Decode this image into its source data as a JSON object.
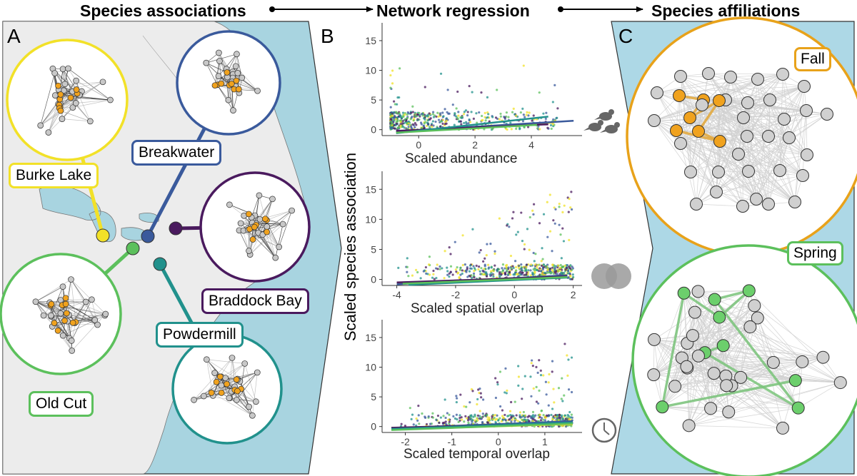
{
  "headers": {
    "associations": "Species associations",
    "regression": "Network regression",
    "affiliations": "Species affiliations"
  },
  "panel_labels": {
    "a": "A",
    "b": "B",
    "c": "C"
  },
  "sites": [
    {
      "name": "Burke Lake",
      "color": "#f2e128"
    },
    {
      "name": "Breakwater",
      "color": "#3a5a9c"
    },
    {
      "name": "Braddock Bay",
      "color": "#4a1a5e"
    },
    {
      "name": "Powdermill",
      "color": "#21918c"
    },
    {
      "name": "Old Cut",
      "color": "#5cc05c"
    }
  ],
  "seasons": [
    {
      "name": "Fall",
      "color": "#e8a21a"
    },
    {
      "name": "Spring",
      "color": "#5cc05c"
    }
  ],
  "colors": {
    "ocean": "#a8d4e0",
    "land": "#ececec",
    "node": "#c8c8c8",
    "highlight": "#f0a21e",
    "spring_node": "#6ccf6c",
    "panel_c_bg": "#add8e6"
  },
  "y_axis_label": "Scaled species association",
  "chart_data": [
    {
      "type": "scatter",
      "xlabel": "Scaled abundance",
      "ylabel": "Scaled species association",
      "xlim": [
        -1.3,
        5.8
      ],
      "ylim": [
        -1,
        18
      ],
      "xticks": [
        0,
        2,
        4
      ],
      "yticks": [
        0,
        5,
        10,
        15
      ],
      "series": [
        {
          "name": "Burke Lake",
          "color": "#f2e128",
          "line": [
            [
              -0.8,
              -0.4
            ],
            [
              4.8,
              1.2
            ]
          ]
        },
        {
          "name": "Breakwater",
          "color": "#3a5a9c",
          "line": [
            [
              -0.8,
              -0.3
            ],
            [
              5.5,
              1.5
            ]
          ]
        },
        {
          "name": "Braddock Bay",
          "color": "#4a1a5e",
          "line": [
            [
              -0.8,
              -0.2
            ],
            [
              4.6,
              0.9
            ]
          ]
        },
        {
          "name": "Powdermill",
          "color": "#21918c",
          "line": [
            [
              -0.8,
              -0.6
            ],
            [
              4.6,
              2.2
            ]
          ]
        },
        {
          "name": "Old Cut",
          "color": "#5cc05c",
          "line": [
            [
              -0.8,
              -0.5
            ],
            [
              4.2,
              0.8
            ]
          ]
        }
      ]
    },
    {
      "type": "scatter",
      "xlabel": "Scaled spatial overlap",
      "ylabel": "Scaled species association",
      "xlim": [
        -4.5,
        2.3
      ],
      "ylim": [
        -1,
        18
      ],
      "xticks": [
        -4,
        -2,
        0,
        2
      ],
      "yticks": [
        0,
        5,
        10,
        15
      ],
      "series": [
        {
          "name": "Burke Lake",
          "color": "#f2e128",
          "line": [
            [
              -4.0,
              -0.6
            ],
            [
              1.8,
              0.6
            ]
          ]
        },
        {
          "name": "Breakwater",
          "color": "#3a5a9c",
          "line": [
            [
              -4.0,
              -0.8
            ],
            [
              1.8,
              0.7
            ]
          ]
        },
        {
          "name": "Braddock Bay",
          "color": "#4a1a5e",
          "line": [
            [
              -4.0,
              -0.5
            ],
            [
              1.8,
              0.5
            ]
          ]
        },
        {
          "name": "Powdermill",
          "color": "#21918c",
          "line": [
            [
              -3.6,
              -0.9
            ],
            [
              1.8,
              0.3
            ]
          ]
        },
        {
          "name": "Old Cut",
          "color": "#5cc05c",
          "line": [
            [
              -3.8,
              -0.7
            ],
            [
              1.8,
              0.4
            ]
          ]
        }
      ]
    },
    {
      "type": "scatter",
      "xlabel": "Scaled temporal overlap",
      "ylabel": "Scaled species association",
      "xlim": [
        -2.5,
        1.8
      ],
      "ylim": [
        -1,
        18
      ],
      "xticks": [
        -2,
        -1,
        0,
        1
      ],
      "yticks": [
        0,
        5,
        10,
        15
      ],
      "series": [
        {
          "name": "Burke Lake",
          "color": "#f2e128",
          "line": [
            [
              -2.3,
              -0.5
            ],
            [
              1.6,
              0.4
            ]
          ]
        },
        {
          "name": "Breakwater",
          "color": "#3a5a9c",
          "line": [
            [
              -2.3,
              -0.3
            ],
            [
              1.6,
              0.9
            ]
          ]
        },
        {
          "name": "Braddock Bay",
          "color": "#4a1a5e",
          "line": [
            [
              -2.3,
              -0.2
            ],
            [
              1.6,
              0.6
            ]
          ]
        },
        {
          "name": "Powdermill",
          "color": "#21918c",
          "line": [
            [
              -2.3,
              -0.4
            ],
            [
              1.6,
              0.7
            ]
          ]
        },
        {
          "name": "Old Cut",
          "color": "#5cc05c",
          "line": [
            [
              -2.3,
              -0.6
            ],
            [
              1.6,
              0.5
            ]
          ]
        }
      ]
    }
  ]
}
